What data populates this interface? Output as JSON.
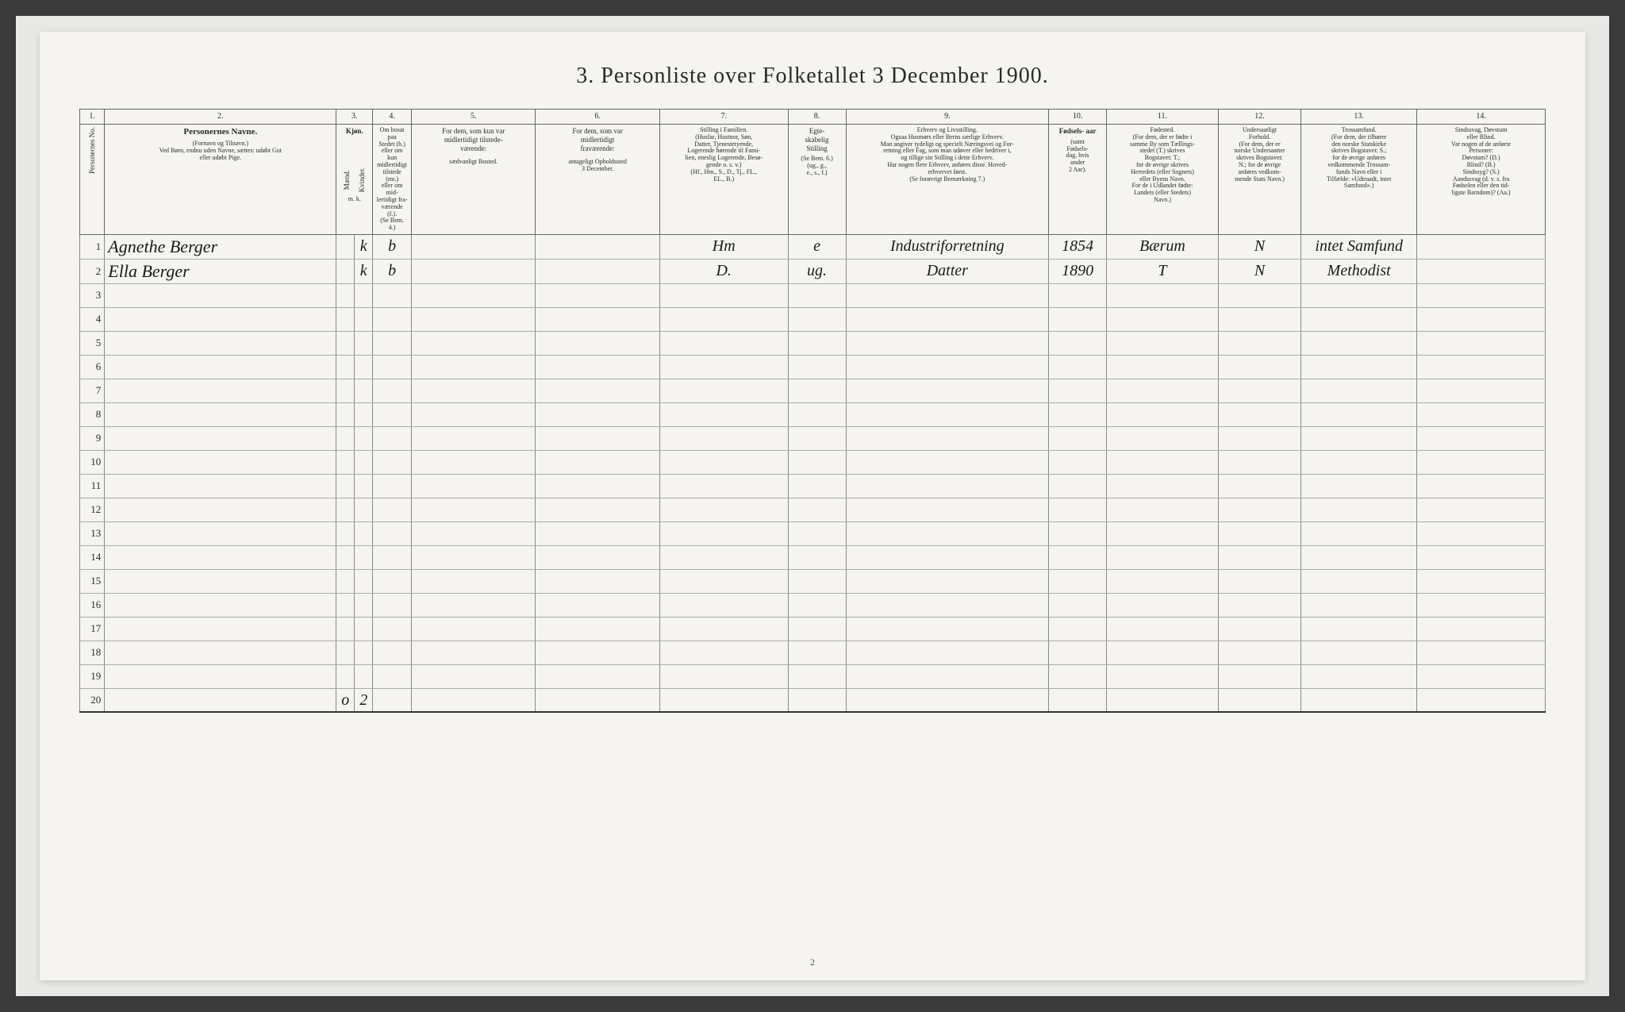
{
  "title": "3. Personliste over Folketallet 3 December 1900.",
  "column_numbers": [
    "1.",
    "2.",
    "3.",
    "4.",
    "5.",
    "6.",
    "7.",
    "8.",
    "9.",
    "10.",
    "11.",
    "12.",
    "13.",
    "14."
  ],
  "headers": {
    "person_no": "Personernes No.",
    "name": "Personernes Navne.",
    "name_sub": "(Fornavn og Tilnavn.)\nVed Børn, endnu uden Navne, sættes: udøbt Gut\neller udøbt Pige.",
    "gender": "Kjøn.",
    "gender_m": "Mænd.",
    "gender_k": "Kvinder.",
    "resident": "Om bosat paa\nStedet (b.)\neller om kun\nmidlertidigt\ntilstede (mt.)\neller om mid-\nlertidigt fra-\nværende (f.).\n(Se Bem. 4.)",
    "present": "For dem, som kun var\nmidlertidigt tilstede-\nværende:",
    "present_sub": "sædvanligt Bosted.",
    "absent": "For dem, som var\nmidlertidigt\nfraværende:",
    "absent_sub": "antageligt Opholdssted\n3 December.",
    "position": "Stilling i Familien.\n(Husfar, Hustnor, Søn,\nDatter, Tjenestetyende,\nLogerende hørende til Fami-\nlien, eneslig Logerende, Besø-\ngende o. s. v.)\n(Hf., Hm., S., D., Tj., FL.,\nEL., B.)",
    "marital": "Egte-\nskabelig\nStilling",
    "marital_sub": "(Se Bem. 6.)\n(ug., g.,\ne., s., f.)",
    "occupation": "Erhverv og Livsstilling.\nOgsaa Husmørs eller Berns særlige Erhverv.\nMan angiver tydeligt og specielt Næringsvei og For-\nretning eller Fag, som man udøver eller bedriver i,\nog tillige sin Stilling i dette Erhverv.\nHar nogen flere Erhverv, anføres disse. Hoved-\nerhvervet først.\n(Se forøvrigt Bemærkning 7.)",
    "birthyear": "Fødsels-\naar",
    "birthyear_sub": "(samt\nFødsels-\ndag, hvis\nunder\n2 Aar).",
    "birthplace": "Fødested.\n(For dem, der er fødte i\nsamme By som Tællings-\nstedet (T.) skrives\nBogstavet: T.;\nfor de øvrige skrives\nHerredets (eller Sognets)\neller Byens Navn.\nFor de i Udlandet fødte:\nLandets (eller Stedets)\nNavn.)",
    "citizenship": "Undersaatligt\nForhold.\n(For dem, der er\nnorske Undersaatter\nskrives Bogstavet:\nN.; for de øvrige\nanføres vedkom-\nmende Stats Navn.)",
    "religion": "Trossamfund.\n(For dem, der tilhører\nden norske Statskirke\nskrives Bogstavet: S.;\nfor de øvrige anføres\nvedkommende Trossam-\nfunds Navn eller i\nTilfælde: «Udtraadt, intet\nSamfund».)",
    "disability": "Sindssvag, Døvstum\neller Blind.\nVar nogen af de anførte\nPersoner:\nDøvstum? (D.)\nBlind? (B.)\nSindssyg? (S.)\nAandssvag (d. v. s. fra\nFødselen eller den tid-\nligste Barndom)? (Aa.)"
  },
  "rows": [
    {
      "num": "1",
      "name": "Agnethe Berger",
      "gender_m": "",
      "gender_k": "k",
      "resident": "b",
      "present": "",
      "absent": "",
      "position": "Hm",
      "marital": "e",
      "occupation": "Industriforretning",
      "birthyear": "1854",
      "birthplace": "Bærum",
      "citizenship": "N",
      "religion": "intet Samfund",
      "disability": ""
    },
    {
      "num": "2",
      "name": "Ella Berger",
      "gender_m": "",
      "gender_k": "k",
      "resident": "b",
      "present": "",
      "absent": "",
      "position": "D.",
      "marital": "ug.",
      "occupation": "Datter",
      "birthyear": "1890",
      "birthplace": "T",
      "citizenship": "N",
      "religion": "Methodist",
      "disability": ""
    }
  ],
  "empty_rows": [
    "3",
    "4",
    "5",
    "6",
    "7",
    "8",
    "9",
    "10",
    "11",
    "12",
    "13",
    "14",
    "15",
    "16",
    "17",
    "18",
    "19"
  ],
  "footer_row": {
    "num": "20",
    "gender_m": "o",
    "gender_k": "2"
  },
  "page_number": "2",
  "styling": {
    "background_outer": "#3a3a3a",
    "background_page": "#e8e8e6",
    "background_doc": "#f5f4f0",
    "border_color": "#666",
    "text_color": "#2a2a2a",
    "handwriting_color": "#1a1a1a",
    "title_fontsize": 28,
    "header_fontsize": 10,
    "body_fontsize": 11,
    "handwriting_fontsize": 22
  }
}
